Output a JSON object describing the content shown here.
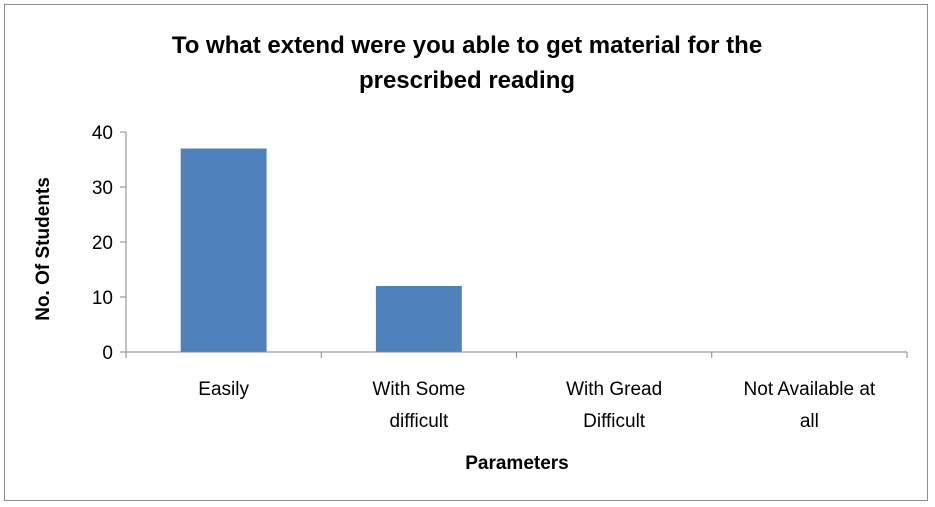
{
  "chart_data": {
    "type": "bar",
    "title_lines": [
      "To what extend were you able to get material for the",
      "prescribed reading"
    ],
    "xlabel": "Parameters",
    "ylabel": "No. Of Students",
    "categories": [
      [
        "Easily"
      ],
      [
        "With Some",
        "difficult"
      ],
      [
        "With Gread",
        "Difficult"
      ],
      [
        "Not Available at",
        "all"
      ]
    ],
    "values": [
      37,
      12,
      0,
      0
    ],
    "ylim": [
      0,
      40
    ],
    "yticks": [
      0,
      10,
      20,
      30,
      40
    ],
    "grid": false,
    "legend": "none",
    "bar_color": "#4f81bd"
  }
}
